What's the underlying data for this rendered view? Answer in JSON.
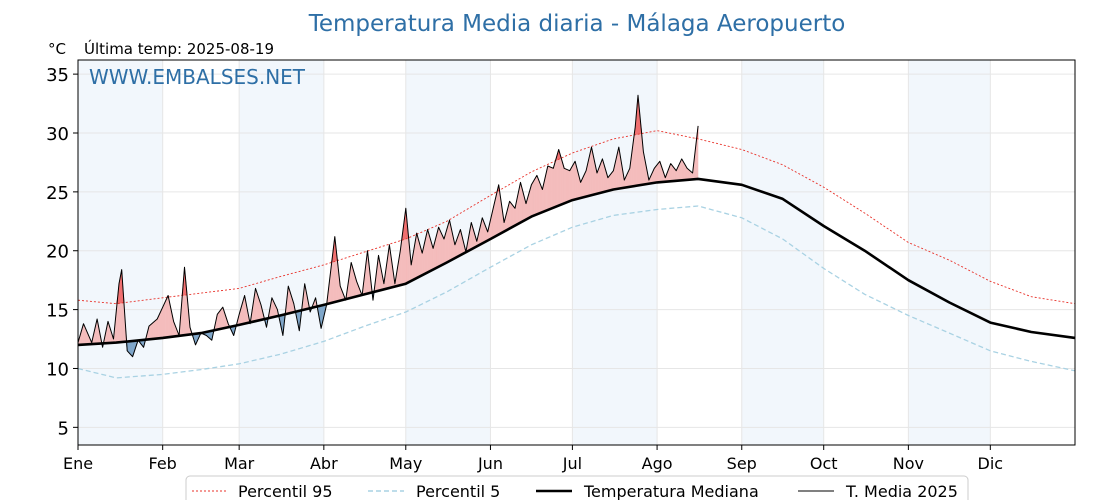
{
  "chart_data": {
    "type": "line",
    "title": "Temperatura Media diaria - Málaga Aeropuerto",
    "unit_label": "°C",
    "last_temp_label": "Última temp: 2025-08-19",
    "watermark": "WWW.EMBALSES.NET",
    "x_tick_labels": [
      "Ene",
      "Feb",
      "Mar",
      "Abr",
      "May",
      "Jun",
      "Jul",
      "Ago",
      "Sep",
      "Oct",
      "Nov",
      "Dic"
    ],
    "x_tick_days": [
      1,
      32,
      60,
      91,
      121,
      152,
      182,
      213,
      244,
      274,
      305,
      335
    ],
    "xlim": [
      1,
      366
    ],
    "ylim": [
      3.5,
      36.2
    ],
    "y_ticks": [
      5,
      10,
      15,
      20,
      25,
      30,
      35
    ],
    "grid": true,
    "shaded_month_bands": [
      [
        1,
        32
      ],
      [
        60,
        91
      ],
      [
        121,
        152
      ],
      [
        182,
        213
      ],
      [
        244,
        274
      ],
      [
        305,
        335
      ]
    ],
    "colors": {
      "title": "#2e6fa6",
      "watermark": "#2e6fa6",
      "p95": "#e8322a",
      "p5": "#a9d2e3",
      "median": "#000000",
      "current": "#000000",
      "above_fill": "#f4bcbc",
      "above_p95_fill": "#f07070",
      "below_fill": "#7fa6c9",
      "band": "#f2f7fc"
    },
    "legend_position": "bottom-center",
    "series": [
      {
        "name": "Percentil 95",
        "style": "dotted",
        "color": "#e8322a",
        "points": [
          [
            1,
            15.8
          ],
          [
            15,
            15.5
          ],
          [
            32,
            16.0
          ],
          [
            46,
            16.4
          ],
          [
            60,
            16.8
          ],
          [
            75,
            17.8
          ],
          [
            91,
            18.8
          ],
          [
            106,
            19.9
          ],
          [
            121,
            21.0
          ],
          [
            136,
            22.5
          ],
          [
            152,
            24.7
          ],
          [
            167,
            26.7
          ],
          [
            182,
            28.3
          ],
          [
            197,
            29.5
          ],
          [
            213,
            30.2
          ],
          [
            228,
            29.5
          ],
          [
            244,
            28.6
          ],
          [
            259,
            27.3
          ],
          [
            274,
            25.4
          ],
          [
            289,
            23.2
          ],
          [
            305,
            20.7
          ],
          [
            320,
            19.2
          ],
          [
            335,
            17.4
          ],
          [
            350,
            16.1
          ],
          [
            366,
            15.5
          ]
        ]
      },
      {
        "name": "Percentil 5",
        "style": "dashed",
        "color": "#a9d2e3",
        "points": [
          [
            1,
            10.0
          ],
          [
            15,
            9.2
          ],
          [
            32,
            9.5
          ],
          [
            46,
            9.9
          ],
          [
            60,
            10.4
          ],
          [
            75,
            11.2
          ],
          [
            91,
            12.3
          ],
          [
            106,
            13.6
          ],
          [
            121,
            14.8
          ],
          [
            136,
            16.5
          ],
          [
            152,
            18.6
          ],
          [
            167,
            20.5
          ],
          [
            182,
            22.0
          ],
          [
            197,
            23.0
          ],
          [
            213,
            23.5
          ],
          [
            228,
            23.8
          ],
          [
            244,
            22.8
          ],
          [
            259,
            21.0
          ],
          [
            274,
            18.5
          ],
          [
            289,
            16.3
          ],
          [
            305,
            14.5
          ],
          [
            320,
            13.0
          ],
          [
            335,
            11.5
          ],
          [
            350,
            10.6
          ],
          [
            366,
            9.8
          ]
        ]
      },
      {
        "name": "Temperatura Mediana",
        "style": "solid-thick",
        "color": "#000000",
        "points": [
          [
            1,
            12.0
          ],
          [
            15,
            12.2
          ],
          [
            32,
            12.6
          ],
          [
            46,
            13.0
          ],
          [
            60,
            13.7
          ],
          [
            75,
            14.5
          ],
          [
            91,
            15.4
          ],
          [
            106,
            16.3
          ],
          [
            121,
            17.2
          ],
          [
            136,
            19.0
          ],
          [
            152,
            21.0
          ],
          [
            167,
            22.9
          ],
          [
            182,
            24.3
          ],
          [
            197,
            25.2
          ],
          [
            213,
            25.8
          ],
          [
            228,
            26.1
          ],
          [
            244,
            25.6
          ],
          [
            259,
            24.4
          ],
          [
            274,
            22.1
          ],
          [
            289,
            20.0
          ],
          [
            305,
            17.5
          ],
          [
            320,
            15.6
          ],
          [
            335,
            13.9
          ],
          [
            350,
            13.1
          ],
          [
            366,
            12.6
          ]
        ]
      },
      {
        "name": "T. Media 2025",
        "style": "solid-thin",
        "color": "#000000",
        "points": [
          [
            1,
            12.2
          ],
          [
            3,
            13.8
          ],
          [
            6,
            12.2
          ],
          [
            8,
            14.2
          ],
          [
            10,
            11.8
          ],
          [
            12,
            14.0
          ],
          [
            14,
            12.5
          ],
          [
            16,
            17.2
          ],
          [
            17,
            18.4
          ],
          [
            19,
            11.5
          ],
          [
            21,
            11.0
          ],
          [
            23,
            12.4
          ],
          [
            25,
            11.8
          ],
          [
            27,
            13.6
          ],
          [
            30,
            14.2
          ],
          [
            32,
            15.2
          ],
          [
            34,
            16.2
          ],
          [
            36,
            14.0
          ],
          [
            38,
            12.8
          ],
          [
            40,
            18.6
          ],
          [
            42,
            13.5
          ],
          [
            44,
            12.0
          ],
          [
            46,
            13.0
          ],
          [
            48,
            12.8
          ],
          [
            50,
            12.4
          ],
          [
            52,
            14.6
          ],
          [
            54,
            15.2
          ],
          [
            56,
            13.8
          ],
          [
            58,
            12.8
          ],
          [
            60,
            14.6
          ],
          [
            62,
            16.2
          ],
          [
            64,
            13.8
          ],
          [
            66,
            16.8
          ],
          [
            68,
            15.4
          ],
          [
            70,
            13.5
          ],
          [
            72,
            16.0
          ],
          [
            74,
            15.0
          ],
          [
            76,
            12.8
          ],
          [
            78,
            17.0
          ],
          [
            80,
            15.5
          ],
          [
            82,
            13.2
          ],
          [
            84,
            17.2
          ],
          [
            86,
            14.8
          ],
          [
            88,
            16.0
          ],
          [
            90,
            13.4
          ],
          [
            92,
            15.4
          ],
          [
            95,
            21.2
          ],
          [
            97,
            17.0
          ],
          [
            99,
            15.8
          ],
          [
            101,
            19.0
          ],
          [
            103,
            17.4
          ],
          [
            105,
            16.2
          ],
          [
            107,
            20.0
          ],
          [
            109,
            15.8
          ],
          [
            111,
            19.6
          ],
          [
            113,
            17.2
          ],
          [
            115,
            20.5
          ],
          [
            117,
            17.2
          ],
          [
            119,
            20.0
          ],
          [
            121,
            23.6
          ],
          [
            123,
            18.8
          ],
          [
            125,
            21.5
          ],
          [
            127,
            19.8
          ],
          [
            129,
            21.8
          ],
          [
            131,
            20.2
          ],
          [
            133,
            22.0
          ],
          [
            135,
            21.0
          ],
          [
            137,
            22.6
          ],
          [
            139,
            20.5
          ],
          [
            141,
            21.8
          ],
          [
            143,
            19.9
          ],
          [
            145,
            22.4
          ],
          [
            147,
            20.8
          ],
          [
            149,
            22.8
          ],
          [
            151,
            21.6
          ],
          [
            153,
            23.6
          ],
          [
            155,
            25.6
          ],
          [
            157,
            22.4
          ],
          [
            159,
            24.2
          ],
          [
            161,
            23.6
          ],
          [
            163,
            25.8
          ],
          [
            165,
            24.0
          ],
          [
            167,
            25.6
          ],
          [
            169,
            26.4
          ],
          [
            171,
            25.2
          ],
          [
            173,
            27.2
          ],
          [
            175,
            27.0
          ],
          [
            177,
            28.6
          ],
          [
            179,
            27.0
          ],
          [
            181,
            26.8
          ],
          [
            183,
            27.6
          ],
          [
            185,
            25.8
          ],
          [
            187,
            26.8
          ],
          [
            189,
            28.8
          ],
          [
            191,
            26.6
          ],
          [
            193,
            27.8
          ],
          [
            195,
            26.2
          ],
          [
            197,
            26.8
          ],
          [
            199,
            28.8
          ],
          [
            201,
            26.0
          ],
          [
            203,
            27.0
          ],
          [
            205,
            30.5
          ],
          [
            206,
            33.2
          ],
          [
            208,
            28.4
          ],
          [
            210,
            26.0
          ],
          [
            212,
            27.0
          ],
          [
            214,
            27.6
          ],
          [
            216,
            26.2
          ],
          [
            218,
            27.4
          ],
          [
            220,
            26.8
          ],
          [
            222,
            27.8
          ],
          [
            224,
            27.0
          ],
          [
            226,
            26.6
          ],
          [
            228,
            30.6
          ]
        ]
      }
    ]
  },
  "legend": {
    "p95": "Percentil 95",
    "p5": "Percentil 5",
    "median": "Temperatura Mediana",
    "current": "T. Media 2025"
  }
}
